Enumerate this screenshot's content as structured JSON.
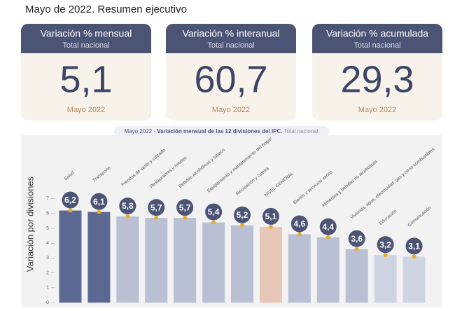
{
  "title": "Mayo de 2022. Resumen ejecutivo",
  "cards": [
    {
      "title": "Variación % mensual",
      "subtitle": "Total nacional",
      "value": "5,1",
      "footer": "Mayo 2022"
    },
    {
      "title": "Variación % interanual",
      "subtitle": "Total nacional",
      "value": "60,7",
      "footer": "Mayo 2022"
    },
    {
      "title": "Variación % acumulada",
      "subtitle": "Total nacional",
      "value": "29,3",
      "footer": "Mayo 2022"
    }
  ],
  "chart_data": {
    "type": "bar",
    "title_parts": [
      "Mayo 2022 - ",
      "Variación mensual de las 12 divisiones del IPC.",
      " Total nacional"
    ],
    "y_label": "Variación por divisiones",
    "categories": [
      "Salud",
      "Transporte",
      "Prendas de vestir y calzado",
      "Restaurantes y hoteles",
      "Bebidas alcohólicas y tabaco",
      "Equipamiento y mantenimiento del hogar",
      "Recreación y cultura",
      "NIVEL GENERAL",
      "Bienes y servicios varios",
      "Alimentos y bebidas no alcohólicas",
      "Vivienda, agua, electricidad, gas y otros combustibles",
      "Educación",
      "Comunicación"
    ],
    "values": [
      6.2,
      6.1,
      5.8,
      5.7,
      5.7,
      5.4,
      5.2,
      5.1,
      4.6,
      4.4,
      3.6,
      3.2,
      3.1
    ],
    "value_labels": [
      "6,2",
      "6,1",
      "5,8",
      "5,7",
      "5,7",
      "5,4",
      "5,2",
      "5,1",
      "4,6",
      "4,4",
      "3,6",
      "3,2",
      "3,1"
    ],
    "colors": [
      "#5b6892",
      "#5b6892",
      "#b9c0d4",
      "#b9c0d4",
      "#b9c0d4",
      "#b9c0d4",
      "#b9c0d4",
      "#e6c6b7",
      "#b9c0d4",
      "#b9c0d4",
      "#b9c0d4",
      "#cfd4e2",
      "#cfd4e2"
    ],
    "ylim": [
      0,
      8
    ],
    "yticks": [
      0,
      1,
      2,
      3,
      4,
      5,
      6,
      7
    ]
  }
}
